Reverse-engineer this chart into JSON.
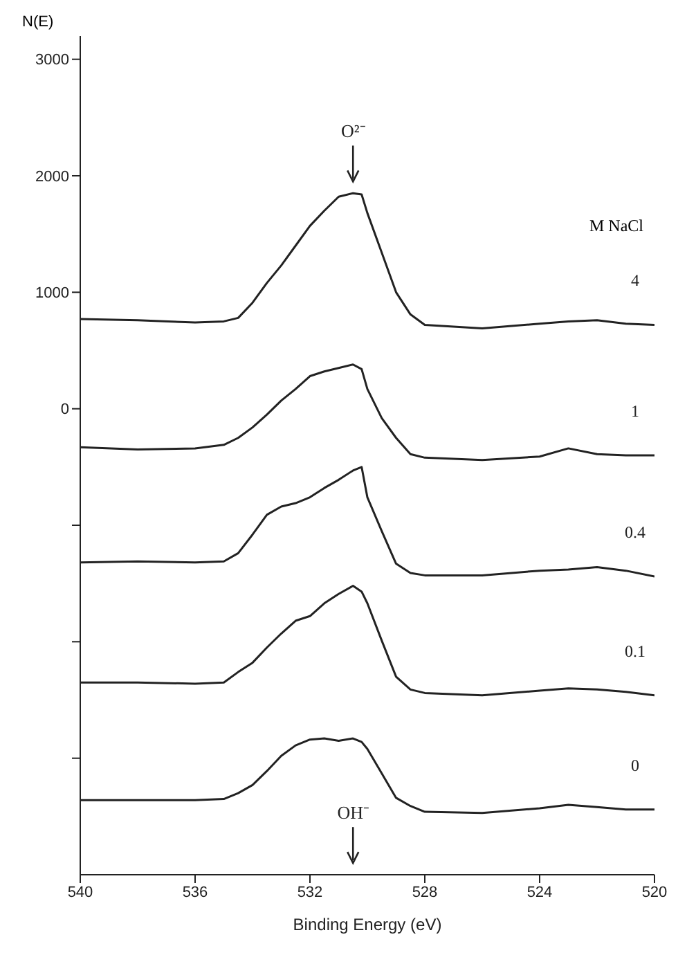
{
  "chart_data": {
    "type": "line",
    "xlabel": "Binding Energy (eV)",
    "ylabel": "N(E)",
    "legend_title": "M NaCl",
    "xlim": [
      540,
      520
    ],
    "xticks": [
      540,
      536,
      532,
      528,
      524,
      520
    ],
    "ylim": [
      -4000,
      3200
    ],
    "yticks": [
      {
        "value": -3000,
        "label": null
      },
      {
        "value": -2000,
        "label": null
      },
      {
        "value": -1000,
        "label": null
      },
      0,
      1000,
      2000,
      3000
    ],
    "grid": false,
    "marker": "none",
    "line_style": "solid",
    "legend": false,
    "x": [
      540,
      538,
      536,
      535,
      534.5,
      534,
      533.5,
      533,
      532.5,
      532,
      531.5,
      531,
      530.5,
      530.2,
      530,
      529.5,
      529,
      528.5,
      528,
      526,
      524,
      523,
      522,
      521,
      520
    ],
    "series": [
      {
        "name": "4",
        "color": "#222222",
        "values": [
          770,
          760,
          740,
          750,
          780,
          910,
          1080,
          1230,
          1400,
          1570,
          1700,
          1820,
          1850,
          1840,
          1680,
          1340,
          1000,
          810,
          720,
          690,
          730,
          750,
          760,
          730,
          720
        ]
      },
      {
        "name": "1",
        "color": "#222222",
        "values": [
          -330,
          -350,
          -340,
          -310,
          -250,
          -160,
          -50,
          70,
          170,
          280,
          320,
          350,
          380,
          340,
          170,
          -80,
          -250,
          -390,
          -420,
          -440,
          -410,
          -340,
          -390,
          -400,
          -400
        ]
      },
      {
        "name": "0.4",
        "color": "#222222",
        "values": [
          -1320,
          -1310,
          -1320,
          -1310,
          -1240,
          -1080,
          -910,
          -840,
          -810,
          -760,
          -680,
          -610,
          -530,
          -500,
          -760,
          -1050,
          -1330,
          -1410,
          -1430,
          -1430,
          -1390,
          -1380,
          -1360,
          -1390,
          -1440
        ]
      },
      {
        "name": "0.1",
        "color": "#222222",
        "values": [
          -2350,
          -2350,
          -2360,
          -2350,
          -2260,
          -2180,
          -2050,
          -1930,
          -1820,
          -1780,
          -1670,
          -1590,
          -1520,
          -1570,
          -1670,
          -1990,
          -2300,
          -2410,
          -2440,
          -2460,
          -2420,
          -2400,
          -2410,
          -2430,
          -2460
        ]
      },
      {
        "name": "0",
        "color": "#222222",
        "values": [
          -3360,
          -3360,
          -3360,
          -3350,
          -3300,
          -3230,
          -3110,
          -2980,
          -2890,
          -2840,
          -2830,
          -2850,
          -2830,
          -2860,
          -2920,
          -3130,
          -3340,
          -3410,
          -3460,
          -3470,
          -3430,
          -3400,
          -3420,
          -3440,
          -3440
        ]
      }
    ],
    "annotations": [
      "O²⁻",
      "OH⁻"
    ]
  }
}
